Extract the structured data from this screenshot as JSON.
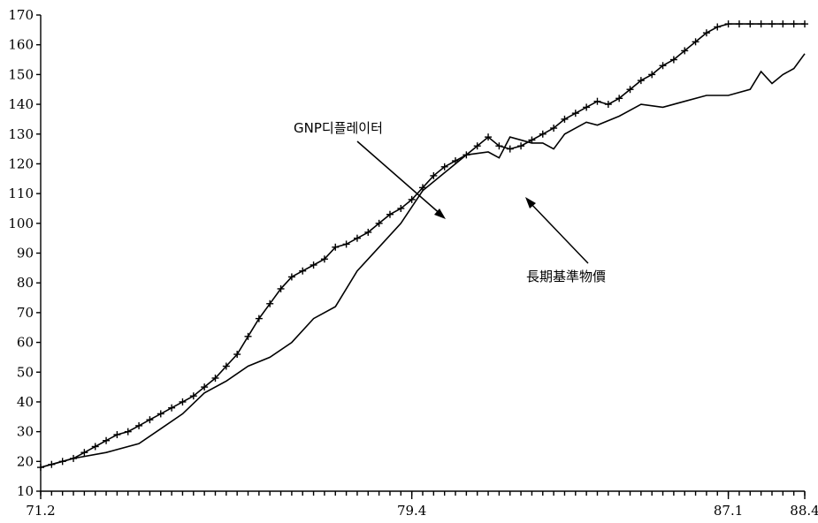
{
  "chart_data": {
    "type": "line",
    "x_tick_labels": [
      "71.2",
      "79.4",
      "87.1",
      "88.4"
    ],
    "x_tick_values": [
      1971.25,
      1979.75,
      1987.0,
      1988.75
    ],
    "y_ticks": [
      10,
      20,
      30,
      40,
      50,
      60,
      70,
      80,
      90,
      100,
      110,
      120,
      130,
      140,
      150,
      160,
      170
    ],
    "xlim": [
      1971.25,
      1988.75
    ],
    "ylim": [
      10,
      170
    ],
    "grid": false,
    "series": [
      {
        "name": "GNP디플레이터",
        "marker": "none",
        "x": [
          1971.25,
          1972.0,
          1972.75,
          1973.5,
          1974.0,
          1974.5,
          1975.0,
          1975.5,
          1976.0,
          1976.5,
          1977.0,
          1977.5,
          1978.0,
          1978.5,
          1979.0,
          1979.5,
          1980.0,
          1980.5,
          1981.0,
          1981.5,
          1981.75,
          1982.0,
          1982.5,
          1982.75,
          1983.0,
          1983.25,
          1983.75,
          1984.0,
          1984.5,
          1985.0,
          1985.5,
          1986.0,
          1986.5,
          1987.0,
          1987.5,
          1987.75,
          1988.0,
          1988.25,
          1988.5,
          1988.75
        ],
        "y": [
          18,
          21,
          23,
          26,
          31,
          36,
          43,
          47,
          52,
          55,
          60,
          68,
          72,
          84,
          92,
          100,
          111,
          117,
          123,
          124,
          122,
          129,
          127,
          127,
          125,
          130,
          134,
          133,
          136,
          140,
          139,
          141,
          143,
          143,
          145,
          151,
          147,
          150,
          152,
          157
        ]
      },
      {
        "name": "長期基準物價",
        "marker": "plus",
        "x": [
          1971.25,
          1971.5,
          1971.75,
          1972.0,
          1972.25,
          1972.5,
          1972.75,
          1973.0,
          1973.25,
          1973.5,
          1973.75,
          1974.0,
          1974.25,
          1974.5,
          1974.75,
          1975.0,
          1975.25,
          1975.5,
          1975.75,
          1976.0,
          1976.25,
          1976.5,
          1976.75,
          1977.0,
          1977.25,
          1977.5,
          1977.75,
          1978.0,
          1978.25,
          1978.5,
          1978.75,
          1979.0,
          1979.25,
          1979.5,
          1979.75,
          1980.0,
          1980.25,
          1980.5,
          1980.75,
          1981.0,
          1981.25,
          1981.5,
          1981.75,
          1982.0,
          1982.25,
          1982.5,
          1982.75,
          1983.0,
          1983.25,
          1983.5,
          1983.75,
          1984.0,
          1984.25,
          1984.5,
          1984.75,
          1985.0,
          1985.25,
          1985.5,
          1985.75,
          1986.0,
          1986.25,
          1986.5,
          1986.75,
          1987.0,
          1987.25,
          1987.5,
          1987.75,
          1988.0,
          1988.25,
          1988.5,
          1988.75
        ],
        "y": [
          18,
          19,
          20,
          21,
          23,
          25,
          27,
          29,
          30,
          32,
          34,
          36,
          38,
          40,
          42,
          45,
          48,
          52,
          56,
          62,
          68,
          73,
          78,
          82,
          84,
          86,
          88,
          92,
          93,
          95,
          97,
          100,
          103,
          105,
          108,
          112,
          116,
          119,
          121,
          123,
          126,
          129,
          126,
          125,
          126,
          128,
          130,
          132,
          135,
          137,
          139,
          141,
          140,
          142,
          145,
          148,
          150,
          153,
          155,
          158,
          161,
          164,
          166,
          167,
          167,
          167,
          167,
          167,
          167,
          167,
          167
        ]
      }
    ]
  },
  "annotations": {
    "gnp_label": "GNP디플레이터",
    "wpi_label": "長期基準物價"
  }
}
